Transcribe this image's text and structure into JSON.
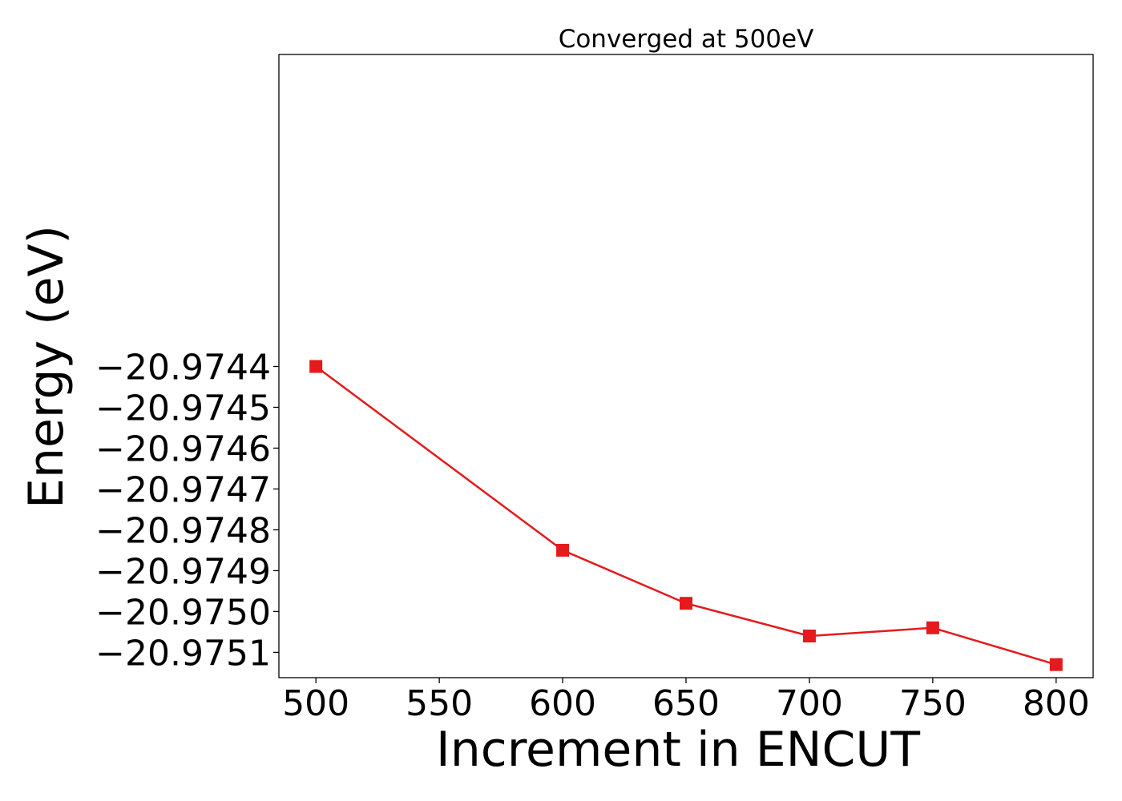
{
  "chart_data": {
    "type": "line",
    "title": "Converged at 500eV",
    "xlabel": "Increment in ENCUT",
    "ylabel": "Energy (eV)",
    "x": [
      500,
      600,
      650,
      700,
      750,
      800
    ],
    "series": [
      {
        "values": [
          -20.9744,
          -20.97485,
          -20.97498,
          -20.97506,
          -20.97504,
          -20.97513
        ],
        "color": "#e41a1c",
        "marker": "square"
      }
    ],
    "xticks": [
      500,
      550,
      600,
      650,
      700,
      750,
      800
    ],
    "xtick_labels": [
      "500",
      "550",
      "600",
      "650",
      "700",
      "750",
      "800"
    ],
    "yticks": [
      -20.9744,
      -20.9745,
      -20.9746,
      -20.9747,
      -20.9748,
      -20.9749,
      -20.975,
      -20.9751
    ],
    "ytick_labels": [
      "−20.9744",
      "−20.9745",
      "−20.9746",
      "−20.9747",
      "−20.9748",
      "−20.9749",
      "−20.9750",
      "−20.9751"
    ],
    "xlim": [
      485,
      815
    ],
    "ylim": [
      -20.975162,
      -20.973636
    ],
    "grid": false,
    "legend": "none"
  }
}
